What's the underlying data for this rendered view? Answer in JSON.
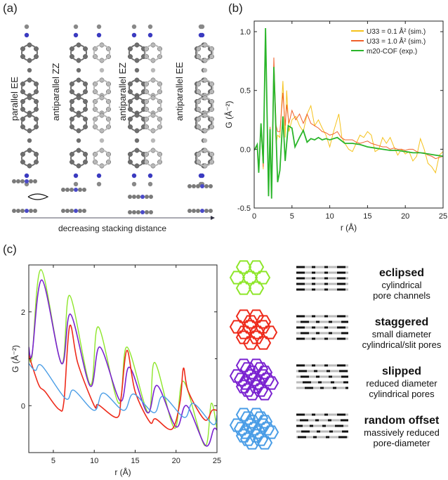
{
  "panels": {
    "a": "(a)",
    "b": "(b)",
    "c": "(c)"
  },
  "panel_a": {
    "configs": [
      "parallel EE",
      "antiparallel ZZ",
      "antiparallel EZ",
      "antiparallel EE"
    ],
    "arrow_label": "decreasing stacking distance"
  },
  "panel_c_models": [
    {
      "title": "eclipsed",
      "lines": [
        "cylindrical",
        "pore channels"
      ],
      "color": "#8ee62a"
    },
    {
      "title": "staggered",
      "lines": [
        "small diameter",
        "cylindrical/slit pores"
      ],
      "color": "#ee2a1a"
    },
    {
      "title": "slipped",
      "lines": [
        "reduced diameter",
        "cylindrical pores"
      ],
      "color": "#7a22d0"
    },
    {
      "title": "random offset",
      "lines": [
        "massively reduced",
        "pore-diameter"
      ],
      "color": "#4a9de6"
    }
  ],
  "chart_data": [
    {
      "type": "line",
      "panel": "b",
      "xlabel": "r (Å)",
      "ylabel": "G (Å⁻²)",
      "xlim": [
        0,
        25
      ],
      "ylim": [
        -0.5,
        1.09
      ],
      "xticks": [
        0,
        5,
        10,
        15,
        20,
        25
      ],
      "yticks": [
        "-0.5",
        "0.0",
        "0.5",
        "1.0"
      ],
      "legend": "top-right",
      "series": [
        {
          "name": "U33 = 0.1 Å² (sim.)",
          "color": "#f5c21b",
          "x": [
            0,
            0.4,
            0.6,
            0.9,
            1.2,
            1.5,
            1.9,
            2.1,
            2.3,
            2.6,
            2.9,
            3.1,
            3.4,
            3.8,
            4.1,
            4.3,
            4.6,
            5,
            5.5,
            6,
            6.5,
            7,
            7.5,
            8,
            8.5,
            9,
            9.5,
            10,
            10.5,
            11.2,
            11.6,
            12,
            12.5,
            13,
            13.5,
            14,
            14.5,
            15,
            15.5,
            16,
            16.5,
            17,
            17.5,
            18,
            18.5,
            19,
            19.5,
            20,
            20.5,
            21,
            21.5,
            22,
            22.5,
            23,
            23.5,
            24,
            24.5,
            25
          ],
          "y": [
            -0.01,
            0.03,
            -0.18,
            0.2,
            -0.17,
            1.02,
            -0.38,
            0.18,
            -0.4,
            0.72,
            0.05,
            0.12,
            0.1,
            0.58,
            0.1,
            0.5,
            0.15,
            0.25,
            0.28,
            0.2,
            0.15,
            0.3,
            0.37,
            0.2,
            0.25,
            0.18,
            0.12,
            0.02,
            0.15,
            0.3,
            0.1,
            0.05,
            0.0,
            -0.02,
            0.05,
            0.12,
            0.1,
            0.15,
            0.12,
            -0.02,
            0.0,
            0.1,
            0.05,
            0.1,
            0.02,
            -0.05,
            0.0,
            -0.04,
            -0.02,
            -0.1,
            -0.06,
            0.09,
            0.0,
            -0.12,
            -0.15,
            -0.2,
            -0.05,
            -0.02
          ]
        },
        {
          "name": "U33 = 1.0 Å² (sim.)",
          "color": "#f0602a",
          "x": [
            0,
            0.4,
            0.6,
            0.9,
            1.2,
            1.5,
            1.9,
            2.1,
            2.3,
            2.6,
            2.9,
            3.1,
            3.4,
            3.8,
            4.1,
            4.3,
            4.6,
            5,
            5.5,
            6,
            6.5,
            7,
            7.5,
            8,
            8.5,
            9,
            9.5,
            10,
            10.5,
            11,
            11.5,
            12,
            12.5,
            13,
            13.5,
            14,
            14.5,
            15,
            15.5,
            16,
            16.5,
            17,
            17.5,
            18,
            18.5,
            19,
            19.5,
            20,
            20.5,
            21,
            21.5,
            22,
            22.5,
            23,
            23.5,
            24,
            24.5,
            25
          ],
          "y": [
            -0.01,
            0.03,
            -0.19,
            0.2,
            -0.15,
            1.02,
            -0.39,
            0.19,
            -0.4,
            0.78,
            0.2,
            0.15,
            0.15,
            0.48,
            0.2,
            0.38,
            0.22,
            0.33,
            0.25,
            0.3,
            0.22,
            0.3,
            0.22,
            0.2,
            0.18,
            0.15,
            0.14,
            0.12,
            0.13,
            0.15,
            0.1,
            0.08,
            0.08,
            0.08,
            0.06,
            0.05,
            0.06,
            0.07,
            0.05,
            0.04,
            0.03,
            0.02,
            0.02,
            0.0,
            0.01,
            0.0,
            0.0,
            -0.01,
            0.0,
            0.0,
            -0.02,
            -0.03,
            -0.03,
            -0.05,
            -0.06,
            -0.08,
            -0.07,
            -0.06
          ]
        },
        {
          "name": "m20-COF (exp.)",
          "color": "#2ab52a",
          "x": [
            0,
            0.4,
            0.6,
            0.9,
            1.2,
            1.5,
            1.9,
            2.1,
            2.3,
            2.6,
            3.1,
            3.4,
            3.8,
            4.1,
            4.5,
            5,
            5.4,
            6,
            6.5,
            7,
            7.5,
            8,
            8.5,
            9,
            9.5,
            10,
            11,
            12,
            13,
            14,
            15,
            16,
            17,
            18,
            19,
            20,
            21,
            22,
            23,
            24,
            25
          ],
          "y": [
            -0.01,
            0.04,
            -0.2,
            0.22,
            -0.12,
            1.03,
            -0.4,
            0.17,
            -0.42,
            0.7,
            -0.28,
            -0.18,
            0.28,
            -0.1,
            0.2,
            0.18,
            0.02,
            0.1,
            0.16,
            0.06,
            0.09,
            0.08,
            0.1,
            0.08,
            0.09,
            0.08,
            0.1,
            0.05,
            0.05,
            0.04,
            0.02,
            0.01,
            0.0,
            -0.01,
            -0.01,
            -0.02,
            -0.03,
            -0.03,
            -0.04,
            -0.05,
            -0.06
          ]
        }
      ]
    },
    {
      "type": "line",
      "panel": "c",
      "xlabel": "r (Å)",
      "ylabel": "G (Å⁻²)",
      "xlim": [
        2,
        25
      ],
      "ylim": [
        -1.0,
        3.0
      ],
      "xticks": [
        5,
        10,
        15,
        20,
        25
      ],
      "yticks": [
        "0",
        "2"
      ],
      "series": [
        {
          "model": "eclipsed",
          "color": "#8ee62a",
          "x": [
            2,
            2.4,
            3.5,
            6,
            7,
            9.5,
            10.5,
            13,
            14,
            16.6,
            17.4,
            19.8,
            20.9,
            23.5,
            24.3,
            25
          ],
          "y": [
            1.1,
            1.05,
            2.9,
            0.9,
            2.35,
            0.45,
            1.68,
            0.05,
            1.25,
            -0.15,
            0.92,
            -0.48,
            0.52,
            -0.85,
            0.05,
            -0.5
          ]
        },
        {
          "model": "slipped",
          "color": "#7a22d0",
          "x": [
            2,
            2.4,
            3.6,
            6,
            7.1,
            9.5,
            10.7,
            13.2,
            14.3,
            16.5,
            17.7,
            20,
            21.3,
            23.6,
            24.6,
            25
          ],
          "y": [
            1.25,
            1.1,
            2.68,
            0.9,
            1.95,
            0.42,
            1.25,
            0.1,
            0.82,
            -0.15,
            0.43,
            -0.45,
            0.0,
            -0.85,
            -0.5,
            -0.52
          ]
        },
        {
          "model": "staggered",
          "color": "#ee2a1a",
          "x": [
            2,
            3.2,
            4,
            5.7,
            6.3,
            7,
            8,
            10,
            10.5,
            12.8,
            13.3,
            14,
            15,
            16.8,
            17.5,
            19.5,
            20.5,
            20.9,
            21.5,
            23.5,
            24.4,
            25
          ],
          "y": [
            1.08,
            0.45,
            0.3,
            -0.08,
            0.1,
            1.7,
            0.9,
            0.0,
            0.02,
            -0.25,
            0.2,
            1.18,
            0.3,
            -0.35,
            -0.28,
            -0.5,
            0.1,
            0.8,
            0.3,
            -0.3,
            -0.1,
            -0.1
          ]
        },
        {
          "model": "random offset",
          "color": "#4a9de6",
          "x": [
            2,
            2.8,
            3.6,
            6.5,
            7.5,
            10,
            11.1,
            13.6,
            14.8,
            17.3,
            18.4,
            21,
            22.1,
            24.5,
            25
          ],
          "y": [
            0.9,
            0.75,
            0.85,
            0.15,
            0.33,
            -0.1,
            0.27,
            -0.1,
            0.25,
            -0.15,
            0.2,
            -0.25,
            0.05,
            -0.4,
            -0.2
          ]
        }
      ]
    }
  ]
}
